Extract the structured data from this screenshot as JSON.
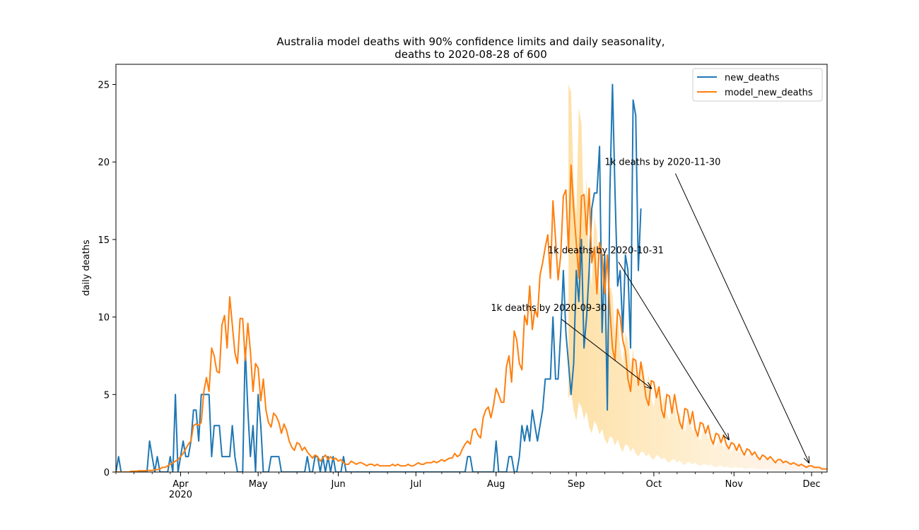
{
  "chart_data": {
    "type": "line",
    "title_line1": "Australia model deaths with 90% confidence limits and daily seasonality,",
    "title_line2": "deaths to 2020-08-28 of 600",
    "xlabel": "",
    "ylabel": "daily deaths",
    "x_start": "2020-03-07",
    "x_end": "2020-12-07",
    "ylim": [
      0,
      26.3
    ],
    "y_ticks": [
      0,
      5,
      10,
      15,
      20,
      25
    ],
    "x_ticks": [
      {
        "date": "2020-04-01",
        "label": "Apr",
        "sublabel": "2020"
      },
      {
        "date": "2020-05-01",
        "label": "May",
        "sublabel": ""
      },
      {
        "date": "2020-06-01",
        "label": "Jun",
        "sublabel": ""
      },
      {
        "date": "2020-07-01",
        "label": "Jul",
        "sublabel": ""
      },
      {
        "date": "2020-08-01",
        "label": "Aug",
        "sublabel": ""
      },
      {
        "date": "2020-09-01",
        "label": "Sep",
        "sublabel": ""
      },
      {
        "date": "2020-10-01",
        "label": "Oct",
        "sublabel": ""
      },
      {
        "date": "2020-11-01",
        "label": "Nov",
        "sublabel": ""
      },
      {
        "date": "2020-12-01",
        "label": "Dec",
        "sublabel": ""
      }
    ],
    "legend_position": "top-right",
    "grid": false,
    "series": [
      {
        "name": "new_deaths",
        "color": "#1f77b4",
        "start_date": "2020-03-07",
        "values": [
          0,
          1,
          0,
          0,
          0,
          0,
          0,
          0,
          0,
          0,
          0,
          0,
          0,
          2,
          1,
          0,
          1,
          0,
          0,
          0,
          0,
          1,
          0,
          5,
          0,
          1,
          2,
          1,
          1,
          2,
          4,
          4,
          2,
          5,
          5,
          5,
          5,
          1,
          3,
          3,
          3,
          1,
          1,
          1,
          1,
          3,
          1,
          0,
          0,
          0,
          8,
          4,
          1,
          3,
          0,
          5,
          3,
          0,
          0,
          0,
          1,
          1,
          1,
          1,
          0,
          0,
          0,
          0,
          0,
          0,
          0,
          0,
          0,
          0,
          1,
          0,
          0,
          1,
          1,
          0,
          1,
          0,
          1,
          0,
          1,
          0,
          0,
          0,
          1,
          0,
          0,
          0,
          0,
          0,
          0,
          0,
          0,
          0,
          0,
          0,
          0,
          0,
          0,
          0,
          0,
          0,
          0,
          0,
          0,
          0,
          0,
          0,
          0,
          0,
          0,
          0,
          0,
          0,
          0,
          0,
          0,
          0,
          0,
          0,
          0,
          0,
          0,
          0,
          0,
          0,
          0,
          0,
          0,
          0,
          0,
          0,
          1,
          1,
          0,
          0,
          0,
          0,
          0,
          0,
          0,
          0,
          0,
          2,
          0,
          0,
          0,
          0,
          1,
          1,
          0,
          0,
          1,
          3,
          2,
          3,
          2,
          4,
          3,
          2,
          3,
          4,
          6,
          6,
          6,
          10,
          6,
          6,
          9,
          13,
          9,
          7,
          5,
          7,
          13,
          11,
          15,
          8,
          10,
          13,
          17,
          18,
          18,
          21,
          9,
          14,
          4,
          18,
          25,
          18,
          12,
          13,
          9,
          14,
          13,
          8,
          24,
          23,
          13,
          17
        ]
      },
      {
        "name": "model_new_deaths",
        "color": "#ff7f0e",
        "start_date": "2020-03-07",
        "values": [
          0,
          0,
          0,
          0,
          0,
          0,
          0.05,
          0.05,
          0.05,
          0.08,
          0.08,
          0.08,
          0.1,
          0.1,
          0.1,
          0.15,
          0.15,
          0.2,
          0.3,
          0.3,
          0.4,
          0.5,
          0.6,
          0.7,
          0.8,
          1.0,
          1.2,
          1.5,
          1.8,
          2.0,
          3.0,
          3.1,
          3.0,
          3.2,
          5.2,
          6.1,
          5.2,
          8.0,
          7.5,
          6.5,
          6.4,
          9.5,
          10.1,
          8.0,
          11.3,
          9.5,
          7.7,
          7.0,
          9.9,
          9.9,
          7.2,
          9.6,
          7.8,
          5.2,
          7.0,
          6.7,
          4.6,
          6.0,
          4.0,
          3.2,
          2.9,
          3.8,
          3.6,
          3.2,
          2.5,
          3.1,
          2.7,
          2.0,
          1.6,
          1.4,
          1.9,
          1.8,
          1.4,
          1.6,
          1.3,
          1.1,
          0.9,
          1.1,
          1.0,
          0.7,
          0.9,
          1.1,
          0.8,
          1.0,
          0.8,
          0.9,
          0.7,
          0.8,
          0.6,
          0.5,
          0.5,
          0.7,
          0.6,
          0.5,
          0.6,
          0.6,
          0.5,
          0.4,
          0.5,
          0.5,
          0.4,
          0.5,
          0.4,
          0.4,
          0.4,
          0.4,
          0.4,
          0.5,
          0.4,
          0.5,
          0.4,
          0.4,
          0.4,
          0.5,
          0.4,
          0.4,
          0.5,
          0.6,
          0.5,
          0.5,
          0.6,
          0.6,
          0.6,
          0.7,
          0.6,
          0.7,
          0.8,
          0.7,
          0.8,
          0.9,
          0.9,
          1.2,
          1.0,
          1.1,
          1.5,
          1.8,
          2.0,
          1.8,
          2.7,
          2.8,
          2.4,
          2.2,
          3.5,
          4.0,
          4.2,
          3.5,
          4.3,
          5.4,
          5.0,
          4.5,
          4.5,
          6.8,
          7.5,
          5.8,
          9.1,
          8.5,
          7.0,
          6.6,
          10.1,
          9.5,
          12.0,
          9.2,
          10.5,
          10.0,
          12.7,
          13.5,
          14.5,
          15.3,
          12.5,
          17.5,
          15.0,
          12.4,
          14.0,
          17.8,
          18.2,
          14.2,
          19.8,
          17.0,
          14.8,
          12.5,
          17.8,
          17.9,
          15.3,
          18.3,
          13.5,
          14.5,
          11.5,
          14.8,
          14.0,
          11.5,
          14.0,
          10.5,
          8.0,
          7.2,
          10.5,
          10.0,
          8.5,
          7.8,
          6.0,
          5.2,
          7.3,
          7.2,
          5.6,
          7.1,
          6.0,
          4.8,
          4.3,
          5.9,
          5.8,
          4.8,
          5.5,
          4.0,
          3.5,
          5.0,
          4.9,
          3.8,
          5.0,
          4.0,
          3.2,
          2.8,
          4.1,
          4.0,
          3.1,
          3.9,
          2.8,
          2.3,
          3.2,
          3.1,
          2.5,
          3.0,
          2.2,
          1.8,
          2.5,
          2.4,
          1.9,
          2.4,
          1.8,
          1.5,
          1.9,
          1.8,
          1.4,
          1.8,
          1.4,
          1.1,
          1.5,
          1.4,
          1.1,
          1.3,
          1.0,
          0.8,
          1.1,
          1.0,
          0.8,
          1.0,
          0.8,
          0.6,
          0.8,
          0.8,
          0.6,
          0.7,
          0.6,
          0.5,
          0.6,
          0.5,
          0.4,
          0.5,
          0.4,
          0.3,
          0.4,
          0.4,
          0.3,
          0.3,
          0.3,
          0.2,
          0.2,
          0.2
        ]
      }
    ],
    "confidence_band": {
      "label": "90% confidence limits",
      "color": "#fdd68a",
      "start_date": "2020-08-29",
      "lower": [
        4.7,
        5.2,
        4.0,
        3.3,
        4.5,
        4.2,
        3.4,
        3.9,
        2.9,
        2.5,
        3.3,
        3.0,
        2.4,
        2.8,
        2.1,
        1.8,
        2.3,
        2.2,
        1.7,
        2.1,
        1.6,
        1.3,
        1.8,
        1.7,
        1.3,
        1.6,
        1.2,
        1.0,
        1.3,
        1.3,
        1.0,
        1.2,
        0.9,
        0.8,
        1.1,
        1.0,
        0.8,
        0.95,
        0.7,
        0.6,
        0.8,
        0.8,
        0.6,
        0.75,
        0.55,
        0.45,
        0.65,
        0.6,
        0.5,
        0.6,
        0.45,
        0.4,
        0.5,
        0.5,
        0.4,
        0.5,
        0.35,
        0.3,
        0.4,
        0.4,
        0.3,
        0.35,
        0.3,
        0.25,
        0.3,
        0.3,
        0.25,
        0.3,
        0.2,
        0.2,
        0.25,
        0.25,
        0.2,
        0.2,
        0.18,
        0.15,
        0.2,
        0.2,
        0.15,
        0.18,
        0.14,
        0.12,
        0.15,
        0.15,
        0.12,
        0.14,
        0.1,
        0.1,
        0.12,
        0.12,
        0.1,
        0.1,
        0.08,
        0.08,
        0.1,
        0.1,
        0.08,
        0.08,
        0.07,
        0.06
      ],
      "upper": [
        25.0,
        24.5,
        18.5,
        16.5,
        23.5,
        22.5,
        16.0,
        19.0,
        13.5,
        12.0,
        16.5,
        15.5,
        11.5,
        14.0,
        10.5,
        9.0,
        12.0,
        11.5,
        9.0,
        10.5,
        8.0,
        7.0,
        9.0,
        8.5,
        6.8,
        8.0,
        6.2,
        5.5,
        7.0,
        6.8,
        5.3,
        6.3,
        4.8,
        4.2,
        5.5,
        5.3,
        4.2,
        5.0,
        3.8,
        3.3,
        4.3,
        4.2,
        3.3,
        3.9,
        3.0,
        2.6,
        3.4,
        3.3,
        2.6,
        3.1,
        2.4,
        2.0,
        2.7,
        2.6,
        2.1,
        2.4,
        1.9,
        1.6,
        2.1,
        2.0,
        1.6,
        1.9,
        1.5,
        1.3,
        1.7,
        1.6,
        1.3,
        1.5,
        1.2,
        1.0,
        1.3,
        1.3,
        1.0,
        1.2,
        0.9,
        0.8,
        1.0,
        1.0,
        0.8,
        0.9,
        0.7,
        0.6,
        0.8,
        0.8,
        0.6,
        0.7,
        0.55,
        0.5,
        0.6,
        0.6,
        0.5,
        0.55,
        0.45,
        0.4,
        0.5,
        0.5,
        0.4,
        0.45,
        0.35,
        0.3
      ]
    },
    "annotations": [
      {
        "text": "1k deaths by 2020-09-30",
        "target_date": "2020-09-30",
        "target_value": 5.4,
        "text_date": "2020-07-30",
        "text_value": 10.4
      },
      {
        "text": "1k deaths by 2020-10-31",
        "target_date": "2020-10-30",
        "target_value": 2.1,
        "text_date": "2020-08-21",
        "text_value": 14.1
      },
      {
        "text": "1k deaths by 2020-11-30",
        "target_date": "2020-11-30",
        "target_value": 0.6,
        "text_date": "2020-09-12",
        "text_value": 19.8
      }
    ]
  }
}
